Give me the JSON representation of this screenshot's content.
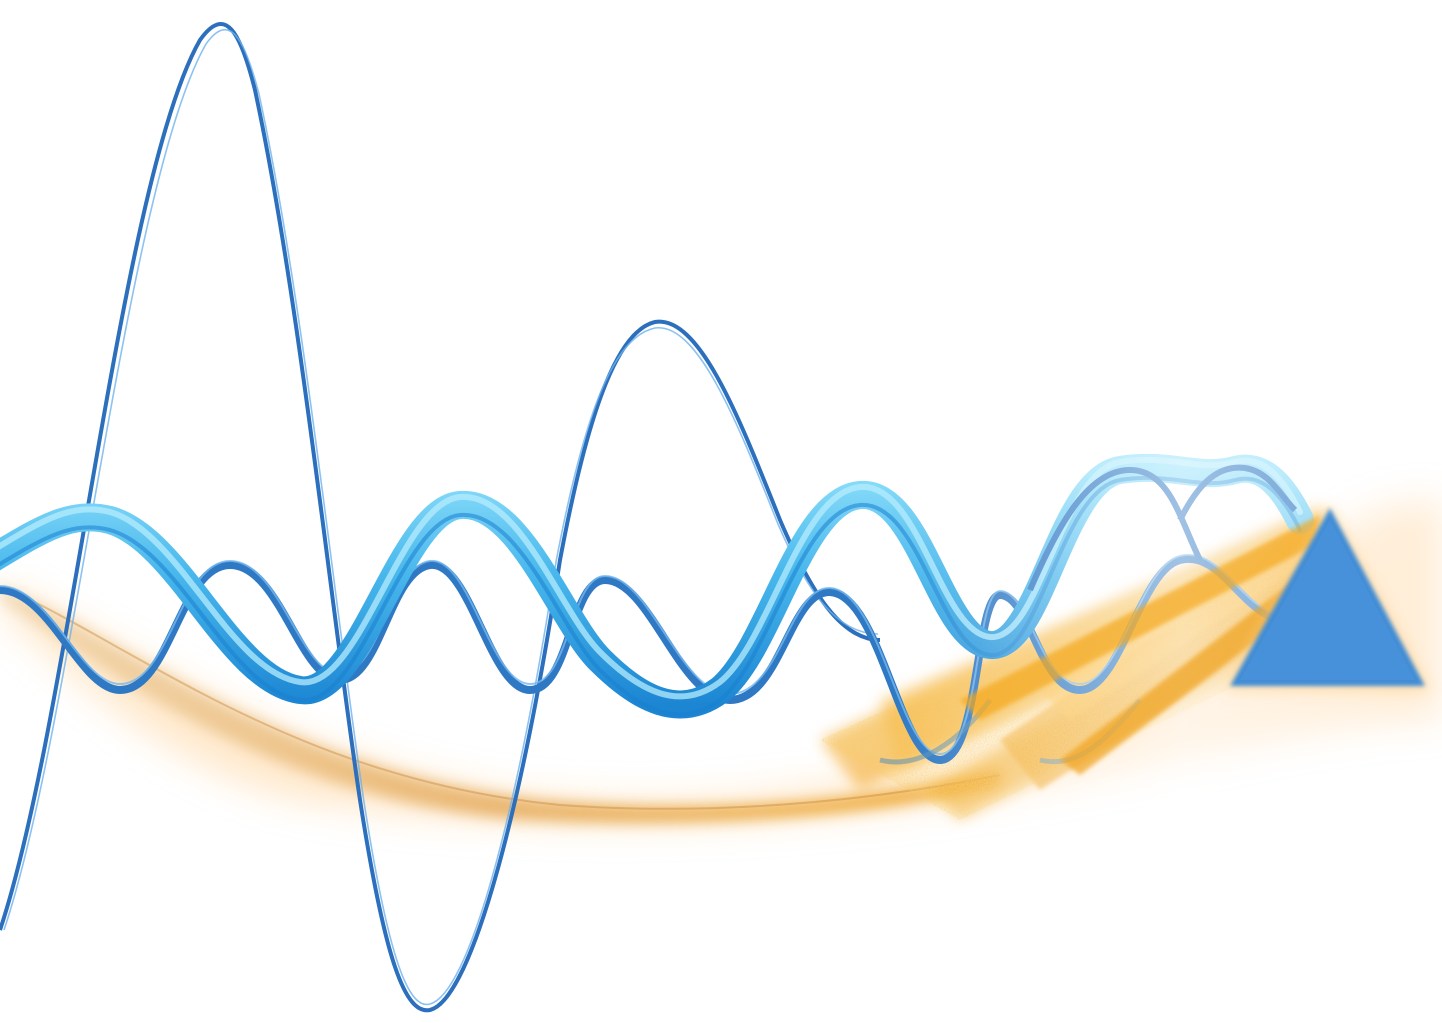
{
  "scene": {
    "background_color": "#ffffff",
    "colors": {
      "thin_wave": "#2f79c4",
      "thin_wave_highlight": "#5aa6ea",
      "thick_wave_dark": "#1d8fd8",
      "thick_wave_light": "#7fd6f6",
      "mid_wave": "#3a82cc",
      "triangle": "#3f8cd6",
      "beam_core": "#f0a21a",
      "beam_glow": "#ffd9a0",
      "tail": "#d9a05a"
    }
  }
}
